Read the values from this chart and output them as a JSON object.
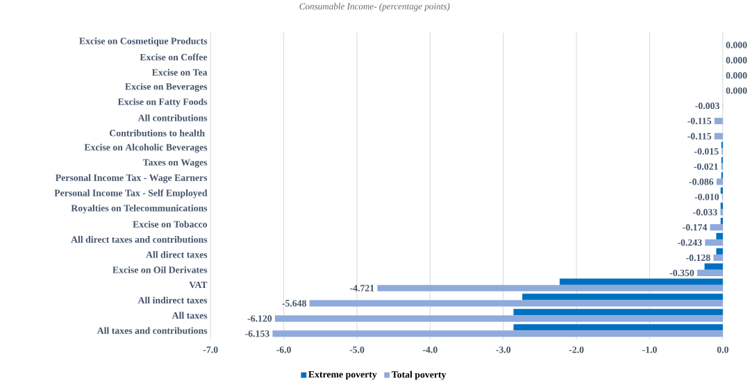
{
  "chart_data": {
    "type": "bar",
    "orientation": "horizontal",
    "title": "Consumable Income-  (percentage points)",
    "categories": [
      "Excise on Cosmetique Products",
      "Excise on Coffee",
      "Excise on Tea",
      "Excise on Beverages",
      "Excise on Fatty Foods",
      "All contributions",
      "Contributions to health ",
      "Excise on Alcoholic Beverages",
      "Taxes on Wages",
      "Personal Income Tax - Wage Earners",
      "Personal Income Tax - Self Employed",
      "Royalties on Telecommunications",
      "Excise on Tobacco",
      "All direct taxes and contributions",
      "All direct taxes",
      "Excise on Oil Derivates",
      "VAT",
      "All indirect taxes",
      "All taxes",
      "All taxes and contributions"
    ],
    "series": [
      {
        "name": "Extreme poverty",
        "color": "#0070c0",
        "values": [
          0,
          0,
          0,
          0,
          0,
          0,
          0,
          -0.02,
          -0.02,
          -0.02,
          -0.03,
          -0.03,
          -0.03,
          -0.09,
          -0.09,
          -0.25,
          -2.23,
          -2.74,
          -2.86,
          -2.86
        ]
      },
      {
        "name": "Total poverty",
        "color": "#8faadc",
        "values": [
          0.0,
          0.0,
          0.0,
          0.0,
          -0.003,
          -0.115,
          -0.115,
          -0.015,
          -0.021,
          -0.086,
          -0.01,
          -0.033,
          -0.174,
          -0.243,
          -0.128,
          -0.35,
          -4.721,
          -5.648,
          -6.12,
          -6.153
        ],
        "value_labels": [
          "0.000",
          "0.000",
          "0.000",
          "0.000",
          "-0.003",
          "-0.115",
          "-0.115",
          "-0.015",
          "-0.021",
          "-0.086",
          "-0.010",
          "-0.033",
          "-0.174",
          "-0.243",
          "-0.128",
          "-0.350",
          "-4.721",
          "-5.648",
          "-6.120",
          "-6.153"
        ]
      }
    ],
    "xlim": [
      -7,
      0
    ],
    "xticks": [
      {
        "value": -7,
        "label": "-7.0"
      },
      {
        "value": -6,
        "label": "-6.0"
      },
      {
        "value": -5,
        "label": "-5.0"
      },
      {
        "value": -4,
        "label": "-4.0"
      },
      {
        "value": -3,
        "label": "-3.0"
      },
      {
        "value": -2,
        "label": "-2.0"
      },
      {
        "value": -1,
        "label": "-1.0"
      },
      {
        "value": 0,
        "label": "0.0"
      }
    ],
    "grid": "x",
    "legend": "bottom"
  }
}
